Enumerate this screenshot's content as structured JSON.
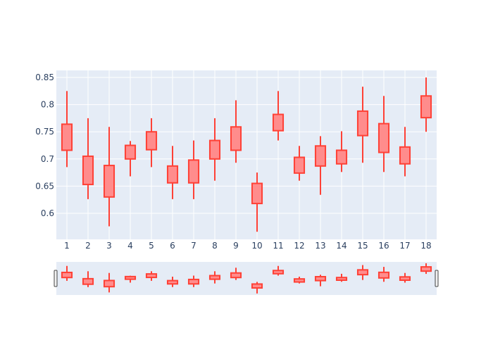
{
  "chart_data": {
    "type": "box",
    "subtype": "candlestick",
    "categories": [
      "1",
      "2",
      "3",
      "4",
      "5",
      "6",
      "7",
      "8",
      "9",
      "10",
      "11",
      "12",
      "13",
      "14",
      "15",
      "16",
      "17",
      "18"
    ],
    "series": [
      {
        "color": "#ff4136",
        "fill": "#ff8c8c",
        "low": [
          0.685,
          0.626,
          0.576,
          0.668,
          0.685,
          0.626,
          0.626,
          0.66,
          0.693,
          0.566,
          0.734,
          0.66,
          0.634,
          0.676,
          0.693,
          0.676,
          0.668,
          0.75
        ],
        "q1": [
          0.716,
          0.653,
          0.63,
          0.7,
          0.717,
          0.656,
          0.656,
          0.7,
          0.716,
          0.618,
          0.752,
          0.674,
          0.687,
          0.691,
          0.743,
          0.712,
          0.691,
          0.776
        ],
        "q3": [
          0.764,
          0.705,
          0.688,
          0.725,
          0.75,
          0.687,
          0.698,
          0.734,
          0.759,
          0.655,
          0.782,
          0.703,
          0.724,
          0.716,
          0.788,
          0.765,
          0.722,
          0.816
        ],
        "high": [
          0.825,
          0.775,
          0.759,
          0.733,
          0.775,
          0.724,
          0.734,
          0.775,
          0.808,
          0.675,
          0.825,
          0.724,
          0.742,
          0.751,
          0.833,
          0.816,
          0.759,
          0.85
        ]
      }
    ],
    "yticks": [
      "0.6",
      "0.65",
      "0.7",
      "0.75",
      "0.8",
      "0.85"
    ],
    "ytick_values": [
      0.6,
      0.65,
      0.7,
      0.75,
      0.8,
      0.85
    ],
    "ylim": [
      0.552,
      0.863
    ],
    "grid": true,
    "legend": "none",
    "rangeslider": true
  },
  "colors": {
    "plot_bg": "#e5ecf6",
    "grid": "#ffffff",
    "tick_text": "#2a3f5f",
    "box_line": "#ff4136",
    "box_fill": "#ff8c8c"
  }
}
